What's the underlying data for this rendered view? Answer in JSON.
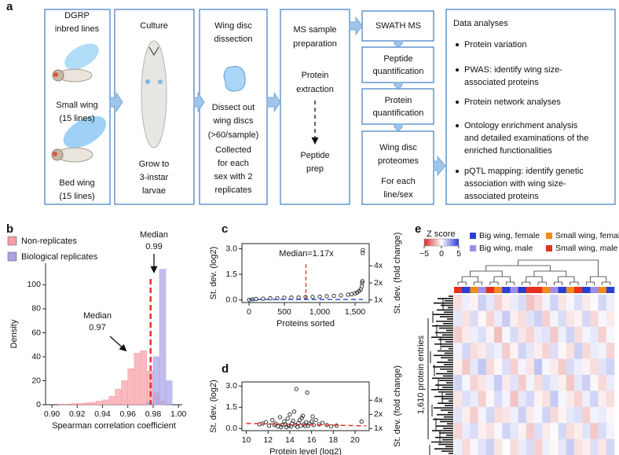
{
  "panel_labels": [
    "a",
    "b",
    "c",
    "d",
    "e"
  ],
  "workflow": {
    "boxes": [
      {
        "lines": [
          "DGRP",
          "inbred lines",
          "Small wing",
          "(15 lines)",
          "Bed wing",
          "(15 lines)"
        ]
      },
      {
        "lines": [
          "Culture",
          "Grow to",
          "3-instar",
          "larvae"
        ]
      },
      {
        "lines": [
          "Wing disc",
          "dissection",
          "Dissect out",
          "wing discs",
          "(>60/sample)",
          "Collected",
          "for each",
          "sex with 2",
          "replicates"
        ]
      },
      {
        "lines": [
          "MS sample",
          "preparation",
          "Protein",
          "extraction",
          "Peptide",
          "prep"
        ]
      },
      {
        "lines": [
          "SWATH MS"
        ]
      },
      {
        "lines": [
          "Peptide",
          "quantification"
        ]
      },
      {
        "lines": [
          "Protein",
          "quantification"
        ]
      },
      {
        "lines": [
          "Wing disc",
          "proteomes",
          "For each",
          "line/sex"
        ]
      }
    ],
    "analyses": {
      "title": "Data analyses",
      "bullets": [
        [
          "Protein variation"
        ],
        [
          "PWAS: identify wing size-",
          "associated proteins"
        ],
        [
          "Protein network analyses"
        ],
        [
          "Ontology enrichment analysis",
          "and detailed examinations of the",
          "enriched functionalities"
        ],
        [
          "pQTL mapping: identify genetic",
          "association with wing size-",
          "associated proteins"
        ]
      ]
    }
  },
  "chart_data": [
    {
      "type": "histogram",
      "bins": [
        0.9,
        0.905,
        0.91,
        0.915,
        0.92,
        0.925,
        0.93,
        0.935,
        0.94,
        0.945,
        0.95,
        0.955,
        0.96,
        0.965,
        0.97,
        0.975,
        0.98,
        0.985,
        0.99,
        0.995,
        1.0
      ],
      "series": [
        {
          "name": "Non-replicates",
          "color": "#f5a0a6",
          "values": [
            0,
            0.5,
            0.5,
            1,
            1,
            1.5,
            2,
            3,
            4,
            7,
            13,
            20,
            30,
            43,
            45,
            28,
            10,
            3,
            0,
            0
          ]
        },
        {
          "name": "Biological replicates",
          "color": "#a9a4e6",
          "values": [
            0,
            0,
            0,
            0,
            0,
            0,
            0,
            0,
            0,
            0,
            0,
            0,
            0,
            0,
            0,
            2,
            40,
            113,
            20,
            0
          ]
        }
      ],
      "xlim": [
        0.895,
        1.003
      ],
      "ylim": [
        0,
        118
      ],
      "xticks": [
        {
          "value": 0.9,
          "label": "0.90"
        },
        0.92,
        0.94,
        0.96,
        0.98,
        {
          "value": 1.0,
          "label": "1.00"
        }
      ],
      "yticks": [
        0,
        20,
        40,
        60,
        80,
        100
      ],
      "x_label": "Spearman correlation coefficient",
      "y_label": "Density",
      "legend": "upper left",
      "reference_line": {
        "x": 0.978,
        "color": "#e8312a"
      },
      "annotations": [
        {
          "lines": [
            "Median",
            "0.97"
          ]
        },
        {
          "lines": [
            "Median",
            "0.99"
          ]
        }
      ]
    },
    {
      "type": "scatter",
      "x": [
        1,
        50,
        100,
        200,
        300,
        400,
        500,
        600,
        700,
        800,
        900,
        1000,
        1100,
        1200,
        1300,
        1400,
        1450,
        1500,
        1530,
        1560,
        1580,
        1595,
        1600,
        1605,
        1608,
        1610
      ],
      "values": [
        0.01,
        0.04,
        0.06,
        0.08,
        0.1,
        0.11,
        0.13,
        0.14,
        0.15,
        0.17,
        0.18,
        0.2,
        0.22,
        0.24,
        0.27,
        0.31,
        0.34,
        0.39,
        0.44,
        0.52,
        0.62,
        0.8,
        1.0,
        1.1,
        2.75,
        2.92
      ],
      "color": "#222222",
      "xlim": [
        -100,
        1700
      ],
      "ylim": [
        -0.15,
        3.3
      ],
      "y2lim": [
        -0.15,
        3.3
      ],
      "xticks": [
        0,
        500,
        {
          "value": 1000,
          "label": "1,000"
        },
        {
          "value": 1500,
          "label": "1,500"
        }
      ],
      "yticks": [
        {
          "value": 0,
          "label": "0.0"
        },
        1.5,
        {
          "value": 3,
          "label": "3.0"
        }
      ],
      "y2ticks": [
        {
          "value": 0,
          "label": "1x"
        },
        {
          "value": 1,
          "label": "2x"
        },
        {
          "value": 2,
          "label": "4x"
        }
      ],
      "x_label": "Proteins sorted",
      "y_label": "St. dev. (log2)",
      "y2_label": "St. dev. (fold change)",
      "annotation": "Median=1.17x",
      "reference_line": {
        "x": 805,
        "color": "#e8312a"
      },
      "trend_line": {
        "x": [
          0,
          1610
        ],
        "values": [
          0.03,
          0.03
        ],
        "color": "#3355cc"
      }
    },
    {
      "type": "scatter",
      "x": [
        11.2,
        11.8,
        12.1,
        12.4,
        12.7,
        12.9,
        13.1,
        13.3,
        13.5,
        13.6,
        13.8,
        13.9,
        14.0,
        14.2,
        14.3,
        14.5,
        14.6,
        14.8,
        14.9,
        15.0,
        15.2,
        15.3,
        15.5,
        15.6,
        15.8,
        16.0,
        16.2,
        16.4,
        16.7,
        17.0,
        17.4,
        17.8,
        18.3,
        20.6,
        13.2,
        14.1,
        14.4,
        15.1,
        15.7,
        12.6,
        13.7,
        16.1,
        14.7,
        15.4,
        11.5
      ],
      "values": [
        0.3,
        0.45,
        0.2,
        0.6,
        0.35,
        0.15,
        0.8,
        0.25,
        0.5,
        0.3,
        0.7,
        0.2,
        1.0,
        0.35,
        0.55,
        0.25,
        2.8,
        0.4,
        0.6,
        0.2,
        0.9,
        0.3,
        0.45,
        2.55,
        0.35,
        0.5,
        0.25,
        0.6,
        0.3,
        0.4,
        0.25,
        0.15,
        0.2,
        0.5,
        0.1,
        0.15,
        1.2,
        0.75,
        0.2,
        0.25,
        0.1,
        0.85,
        0.12,
        0.18,
        0.35
      ],
      "color": "#222222",
      "xlim": [
        9.6,
        21.3
      ],
      "ylim": [
        -0.15,
        3.3
      ],
      "y2lim": [
        -0.15,
        3.3
      ],
      "xticks": [
        10,
        12,
        14,
        16,
        18,
        20
      ],
      "yticks": [
        {
          "value": 0,
          "label": "0.0"
        },
        1.5,
        {
          "value": 3,
          "label": "3.0"
        }
      ],
      "y2ticks": [
        {
          "value": 0,
          "label": "1x"
        },
        {
          "value": 1,
          "label": "2x"
        },
        {
          "value": 2,
          "label": "4x"
        }
      ],
      "x_label": "Protein level (log2)",
      "y_label": "St. dev. (log2)",
      "y2_label": "St. dev. (fold change)",
      "trend_line": {
        "x": [
          10,
          21
        ],
        "values": [
          0.36,
          0.19
        ],
        "color": "#e8312a"
      }
    },
    {
      "type": "heatmap",
      "colorbar_title": "Z score",
      "zlim": [
        -5,
        5
      ],
      "zticks": [
        {
          "value": -5,
          "label": "−5"
        },
        0,
        5
      ],
      "low_color": "#d42a2a",
      "high_color": "#2a3ad4",
      "legend_entries": [
        {
          "name": "Big wing, female",
          "color": "#2b3fd6"
        },
        {
          "name": "Small wing, female",
          "color": "#f28a1e"
        },
        {
          "name": "Big wing, male",
          "color": "#9a8ee8"
        },
        {
          "name": "Small wing, male",
          "color": "#e8301e"
        }
      ],
      "column_groups": [
        3,
        0,
        1,
        2,
        3,
        1,
        0,
        2,
        0,
        3,
        3,
        1,
        2,
        0,
        1,
        3,
        0,
        2,
        1,
        0
      ],
      "y_label": "1,610 protein entries",
      "values": [
        [
          -0.8,
          0.4,
          -0.3,
          1.2,
          0.6,
          -1.1,
          -0.4,
          0.5,
          0.9,
          -1.4,
          -0.9,
          0.3,
          1.1,
          -0.6,
          0.2,
          0.8,
          -0.5,
          0.1,
          1.0,
          0.4
        ],
        [
          0.6,
          -0.7,
          0.9,
          -0.2,
          -1.0,
          0.5,
          1.3,
          -0.4,
          -0.8,
          0.7,
          1.2,
          -1.1,
          0.3,
          0.9,
          -0.6,
          -0.3,
          1.0,
          -0.9,
          0.2,
          -0.5
        ],
        [
          -1.2,
          -0.5,
          0.4,
          0.8,
          -0.3,
          -1.5,
          0.2,
          0.9,
          -0.6,
          -1.0,
          0.5,
          0.7,
          -1.3,
          0.4,
          1.1,
          -0.8,
          0.3,
          0.6,
          -1.1,
          0.2
        ],
        [
          0.3,
          1.0,
          -0.8,
          -0.5,
          0.7,
          0.4,
          -1.2,
          -0.3,
          1.1,
          0.6,
          -0.4,
          -1.0,
          0.8,
          -0.2,
          -0.7,
          1.2,
          -0.9,
          0.5,
          0.3,
          -1.0
        ],
        [
          -0.4,
          -1.3,
          0.6,
          1.4,
          -0.9,
          -0.2,
          0.8,
          -1.1,
          0.3,
          -0.6,
          1.5,
          0.2,
          -0.5,
          -1.2,
          0.9,
          0.4,
          -0.3,
          -0.8,
          0.7,
          1.1
        ],
        [
          1.1,
          0.2,
          -1.0,
          -0.6,
          0.4,
          1.3,
          -0.5,
          0.7,
          -1.2,
          0.3,
          -0.8,
          0.9,
          0.5,
          -0.4,
          -1.3,
          0.6,
          1.2,
          -0.2,
          -0.9,
          0.5
        ],
        [
          -0.6,
          0.8,
          0.5,
          -1.1,
          -0.2,
          0.9,
          0.3,
          -1.4,
          0.6,
          1.0,
          -0.3,
          -0.7,
          1.3,
          0.2,
          -0.5,
          -1.0,
          0.4,
          1.1,
          -0.4,
          -0.8
        ],
        [
          0.7,
          -0.4,
          -1.2,
          0.3,
          1.0,
          -0.8,
          -0.6,
          0.4,
          1.2,
          -0.5,
          0.2,
          1.1,
          -0.9,
          -0.3,
          0.6,
          0.8,
          -1.1,
          0.3,
          0.5,
          -0.2
        ],
        [
          -1.0,
          0.5,
          0.9,
          -0.4,
          -0.7,
          0.2,
          1.1,
          0.6,
          -0.3,
          -1.2,
          0.8,
          -0.5,
          0.1,
          1.0,
          -0.8,
          -0.4,
          0.7,
          -1.3,
          0.9,
          0.3
        ],
        [
          0.4,
          -0.9,
          0.2,
          0.7,
          1.2,
          -0.6,
          -0.1,
          -0.8,
          0.5,
          0.9,
          -1.1,
          0.4,
          -0.2,
          0.6,
          1.3,
          -0.7,
          -0.4,
          0.8,
          -0.6,
          1.0
        ]
      ]
    }
  ]
}
